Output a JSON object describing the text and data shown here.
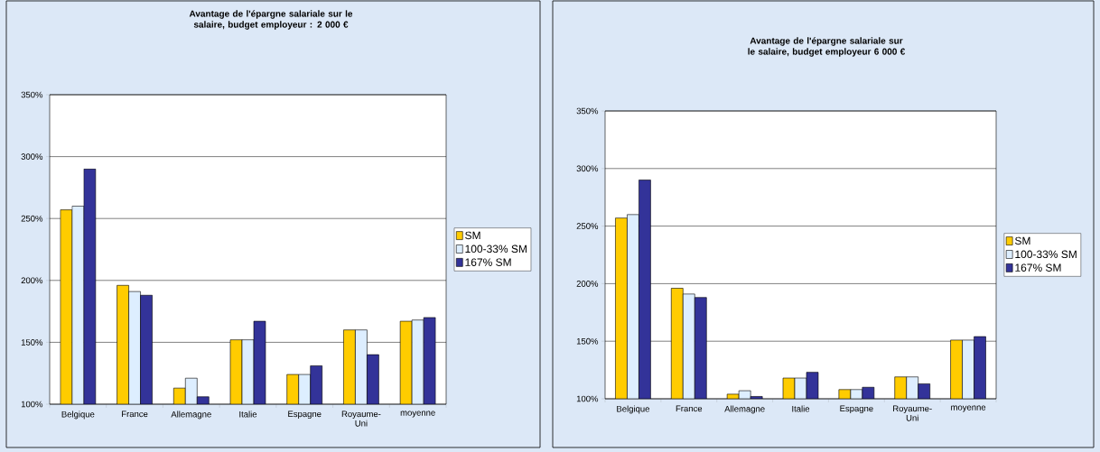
{
  "chart_data": [
    {
      "type": "bar",
      "title": "Avantage de l'épargne salariale sur le salaire, budget employeur : 2 000 €",
      "categories": [
        "Belgique",
        "France",
        "Allemagne",
        "Italie",
        "Espagne",
        "Royaume-Uni",
        "moyenne"
      ],
      "series": [
        {
          "name": "SM",
          "color": "#ffcc00",
          "values": [
            257,
            196,
            113,
            152,
            124,
            160,
            167
          ]
        },
        {
          "name": "100-33% SM",
          "color": "#ddeeff",
          "values": [
            260,
            191,
            121,
            152,
            124,
            160,
            168
          ]
        },
        {
          "name": "167% SM",
          "color": "#333399",
          "values": [
            290,
            188,
            106,
            167,
            131,
            140,
            170
          ]
        }
      ],
      "ylim": [
        100,
        350
      ],
      "yticks": [
        {
          "value": 100,
          "label": "100%"
        },
        {
          "value": 150,
          "label": "150%"
        },
        {
          "value": 200,
          "label": "200%"
        },
        {
          "value": 250,
          "label": "250%"
        },
        {
          "value": 300,
          "label": "300%"
        },
        {
          "value": 350,
          "label": "350%"
        }
      ],
      "grid": "y",
      "legend": "right"
    },
    {
      "type": "bar",
      "title": "Avantage de l'épargne salariale sur le salaire, budget employeur 6 000 €",
      "categories": [
        "Belgique",
        "France",
        "Allemagne",
        "Italie",
        "Espagne",
        "Royaume-Uni",
        "moyenne"
      ],
      "series": [
        {
          "name": "SM",
          "color": "#ffcc00",
          "values": [
            257,
            196,
            104,
            118,
            108,
            119,
            151
          ]
        },
        {
          "name": "100-33% SM",
          "color": "#ddeeff",
          "values": [
            260,
            191,
            107,
            118,
            108,
            119,
            151
          ]
        },
        {
          "name": "167% SM",
          "color": "#333399",
          "values": [
            290,
            188,
            102,
            123,
            110,
            113,
            154
          ]
        }
      ],
      "ylim": [
        100,
        350
      ],
      "yticks": [
        {
          "value": 100,
          "label": "100%"
        },
        {
          "value": 150,
          "label": "150%"
        },
        {
          "value": 200,
          "label": "200%"
        },
        {
          "value": 250,
          "label": "250%"
        },
        {
          "value": 300,
          "label": "300%"
        },
        {
          "value": 350,
          "label": "350%"
        }
      ],
      "grid": "y",
      "legend": "right"
    }
  ]
}
